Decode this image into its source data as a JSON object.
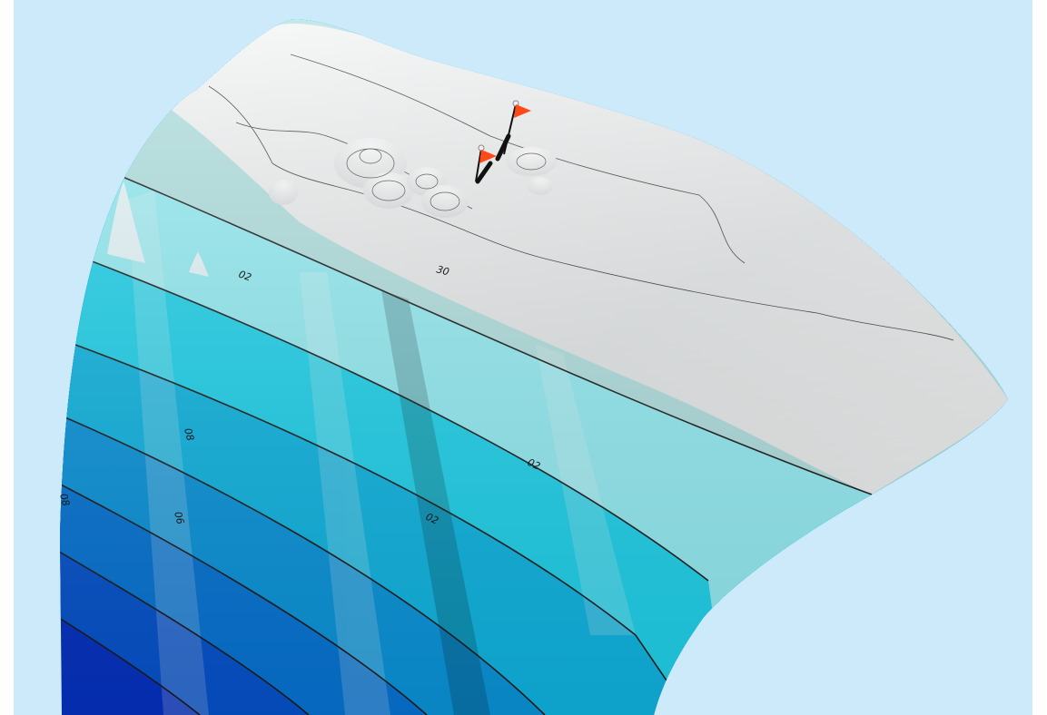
{
  "scene": {
    "background_color": "#cdeafb",
    "frame_color": "#ffffff",
    "description_type": "3d-bathymetric-terrain"
  },
  "terrain": {
    "land_color": "#eceff0",
    "land_highlight": "#ffffff",
    "depth_bands": [
      {
        "index": 0,
        "color": "#b4e3e3"
      },
      {
        "index": 1,
        "color": "#96f1f8"
      },
      {
        "index": 2,
        "color": "#1fd6f0"
      },
      {
        "index": 3,
        "color": "#0fb8e6"
      },
      {
        "index": 4,
        "color": "#0a97df"
      },
      {
        "index": 5,
        "color": "#0676d8"
      },
      {
        "index": 6,
        "color": "#0554d0"
      },
      {
        "index": 7,
        "color": "#0432c4"
      }
    ],
    "contour_color": "#1b1b1b"
  },
  "contour_labels": [
    {
      "text": "02"
    },
    {
      "text": "30"
    },
    {
      "text": "02"
    },
    {
      "text": "02"
    },
    {
      "text": "08"
    },
    {
      "text": "06"
    },
    {
      "text": "08"
    }
  ],
  "markers": [
    {
      "name": "flag-upper",
      "color": "#ff4a17",
      "pole_color": "#111111"
    },
    {
      "name": "flag-lower",
      "color": "#ff4a17",
      "pole_color": "#111111"
    }
  ]
}
